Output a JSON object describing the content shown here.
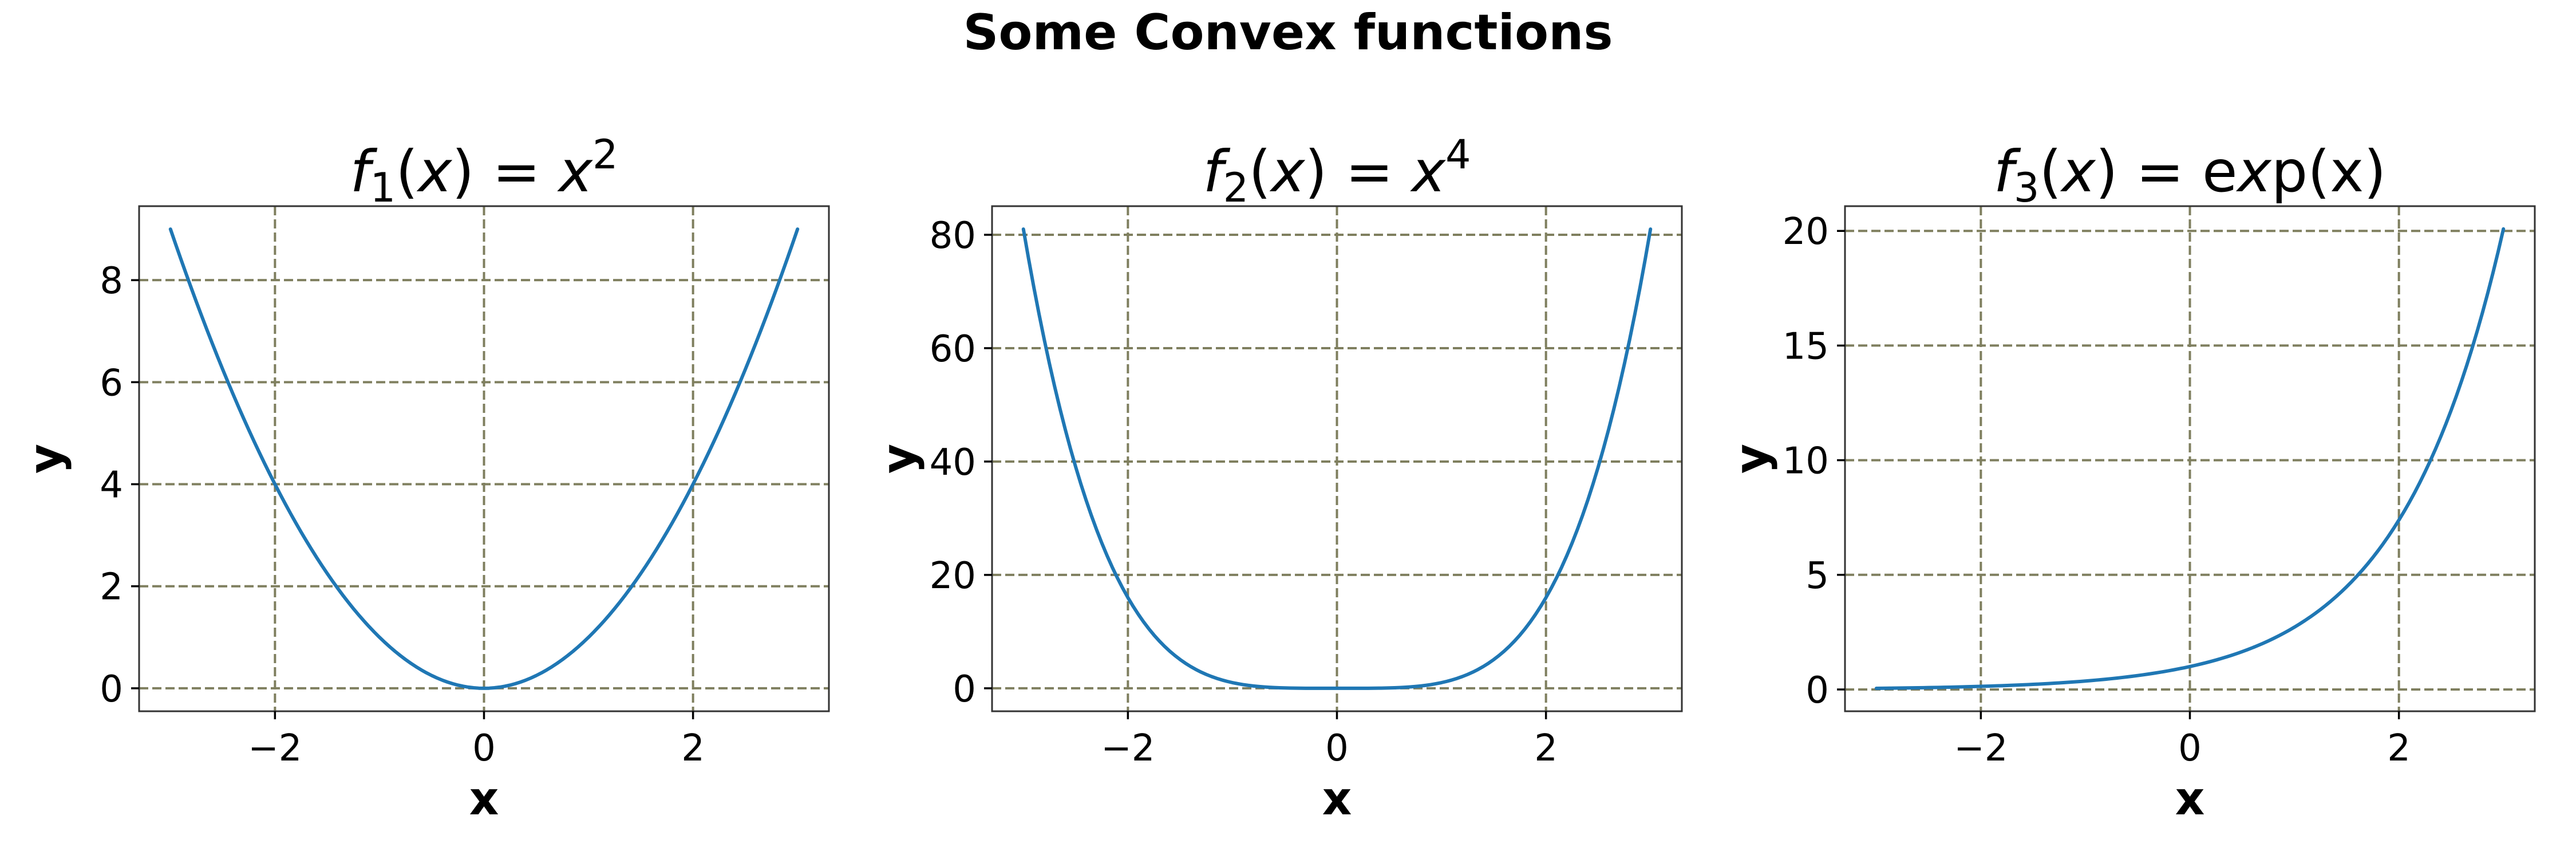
{
  "suptitle": "Some Convex functions",
  "colors": {
    "line": "#1f77b4",
    "grid": "#7f7f5f"
  },
  "chart_data": [
    {
      "type": "line",
      "title": {
        "fname": "f",
        "sub": "1",
        "arg": "(x) = ",
        "base": "x",
        "sup": "2",
        "expr": ""
      },
      "xlabel": "x",
      "ylabel": "y",
      "xlim": [
        -3.3,
        3.3
      ],
      "ylim": [
        -0.45,
        9.45
      ],
      "x_ticks": [
        -2,
        0,
        2
      ],
      "x_tick_labels": [
        "−2",
        "0",
        "2"
      ],
      "y_ticks": [
        0,
        2,
        4,
        6,
        8
      ],
      "y_tick_labels": [
        "0",
        "2",
        "4",
        "6",
        "8"
      ],
      "grid": true,
      "series": [
        {
          "function": "x^2",
          "x_range": [
            -3,
            3
          ],
          "samples": 121,
          "points": [
            [
              -3,
              9
            ],
            [
              -2,
              4
            ],
            [
              -1,
              1
            ],
            [
              0,
              0
            ],
            [
              1,
              1
            ],
            [
              2,
              4
            ],
            [
              3,
              9
            ]
          ]
        }
      ]
    },
    {
      "type": "line",
      "title": {
        "fname": "f",
        "sub": "2",
        "arg": "(x) = ",
        "base": "x",
        "sup": "4",
        "expr": ""
      },
      "xlabel": "x",
      "ylabel": "y",
      "xlim": [
        -3.3,
        3.3
      ],
      "ylim": [
        -4.05,
        85.05
      ],
      "x_ticks": [
        -2,
        0,
        2
      ],
      "x_tick_labels": [
        "−2",
        "0",
        "2"
      ],
      "y_ticks": [
        0,
        20,
        40,
        60,
        80
      ],
      "y_tick_labels": [
        "0",
        "20",
        "40",
        "60",
        "80"
      ],
      "grid": true,
      "series": [
        {
          "function": "x^4",
          "x_range": [
            -3,
            3
          ],
          "samples": 121,
          "points": [
            [
              -3,
              81
            ],
            [
              -2,
              16
            ],
            [
              -1,
              1
            ],
            [
              0,
              0
            ],
            [
              1,
              1
            ],
            [
              2,
              16
            ],
            [
              3,
              81
            ]
          ]
        }
      ]
    },
    {
      "type": "line",
      "title": {
        "fname": "f",
        "sub": "3",
        "arg": "(x) = ",
        "base": "",
        "sup": "",
        "expr": "exp(x)"
      },
      "xlabel": "x",
      "ylabel": "y",
      "xlim": [
        -3.3,
        3.3
      ],
      "ylim": [
        -0.95,
        21.08
      ],
      "x_ticks": [
        -2,
        0,
        2
      ],
      "x_tick_labels": [
        "−2",
        "0",
        "2"
      ],
      "y_ticks": [
        0,
        5,
        10,
        15,
        20
      ],
      "y_tick_labels": [
        "0",
        "5",
        "10",
        "15",
        "20"
      ],
      "grid": true,
      "series": [
        {
          "function": "exp(x)",
          "x_range": [
            -3,
            3
          ],
          "samples": 121,
          "points": [
            [
              -3,
              0.05
            ],
            [
              -2,
              0.14
            ],
            [
              -1,
              0.37
            ],
            [
              0,
              1
            ],
            [
              1,
              2.72
            ],
            [
              2,
              7.39
            ],
            [
              3,
              20.09
            ]
          ]
        }
      ]
    }
  ]
}
